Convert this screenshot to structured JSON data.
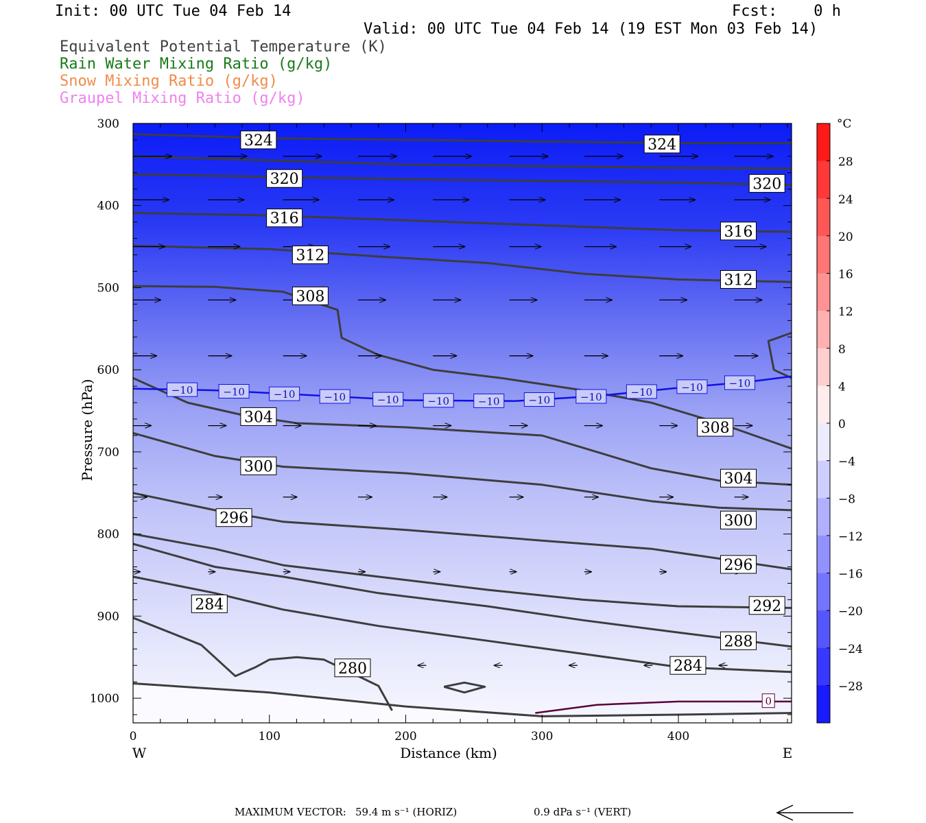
{
  "header": {
    "init": "Init: 00 UTC Tue 04 Feb 14",
    "fcst": "Fcst:    0 h",
    "valid": "Valid: 00 UTC Tue 04 Feb 14 (19 EST Mon 03 Feb 14)",
    "legend": [
      {
        "text": "Equivalent Potential Temperature (K)",
        "color": "#404040"
      },
      {
        "text": "Rain Water Mixing Ratio (g/kg)",
        "color": "#1a7a1a"
      },
      {
        "text": "Snow Mixing Ratio (g/kg)",
        "color": "#f08c4a"
      },
      {
        "text": "Graupel Mixing Ratio (g/kg)",
        "color": "#ee82ee"
      }
    ]
  },
  "chart_data": {
    "type": "cross-section",
    "xlabel": "Distance (km)",
    "ylabel": "Pressure (hPa)",
    "xlim": [
      0,
      483
    ],
    "ylim": [
      1030,
      300
    ],
    "xticks": [
      0,
      100,
      200,
      300,
      400
    ],
    "yticks": [
      300,
      400,
      500,
      600,
      700,
      800,
      900,
      1000
    ],
    "x_left_label": "W",
    "x_right_label": "E",
    "colorbar": {
      "unit": "°C",
      "labels": [
        "28",
        "24",
        "20",
        "16",
        "12",
        "8",
        "4",
        "0",
        "−4",
        "−8",
        "−12",
        "−16",
        "−20",
        "−24",
        "−28"
      ],
      "values": [
        28,
        24,
        20,
        16,
        12,
        8,
        4,
        0,
        -4,
        -8,
        -12,
        -16,
        -20,
        -24,
        -28
      ]
    },
    "theta_e_labels": [
      {
        "text": "324",
        "x": 92,
        "p": 320
      },
      {
        "text": "324",
        "x": 388,
        "p": 325
      },
      {
        "text": "320",
        "x": 111,
        "p": 367
      },
      {
        "text": "320",
        "x": 465,
        "p": 373
      },
      {
        "text": "316",
        "x": 111,
        "p": 415
      },
      {
        "text": "316",
        "x": 444,
        "p": 431
      },
      {
        "text": "312",
        "x": 130,
        "p": 460
      },
      {
        "text": "312",
        "x": 444,
        "p": 490
      },
      {
        "text": "308",
        "x": 130,
        "p": 510
      },
      {
        "text": "308",
        "x": 427,
        "p": 670
      },
      {
        "text": "304",
        "x": 92,
        "p": 657
      },
      {
        "text": "304",
        "x": 444,
        "p": 732
      },
      {
        "text": "300",
        "x": 92,
        "p": 717
      },
      {
        "text": "300",
        "x": 444,
        "p": 783
      },
      {
        "text": "296",
        "x": 74,
        "p": 780
      },
      {
        "text": "296",
        "x": 444,
        "p": 837
      },
      {
        "text": "292",
        "x": 465,
        "p": 887
      },
      {
        "text": "288",
        "x": 444,
        "p": 930
      },
      {
        "text": "284",
        "x": 56,
        "p": 885
      },
      {
        "text": "284",
        "x": 407,
        "p": 960
      },
      {
        "text": "280",
        "x": 161,
        "p": 963
      }
    ],
    "temperature_contour": {
      "value": "−10",
      "labels_x": [
        36,
        74,
        111,
        148,
        187,
        224,
        261,
        298,
        336,
        373,
        410,
        445
      ]
    },
    "freezing_label": {
      "text": "0",
      "x": 466,
      "p": 1003
    },
    "max_vector": {
      "label": "MAXIMUM VECTOR:",
      "horiz": "59.4 m s⁻¹ (HORIZ)",
      "vert": "0.9 dPa s⁻¹ (VERT)"
    }
  }
}
